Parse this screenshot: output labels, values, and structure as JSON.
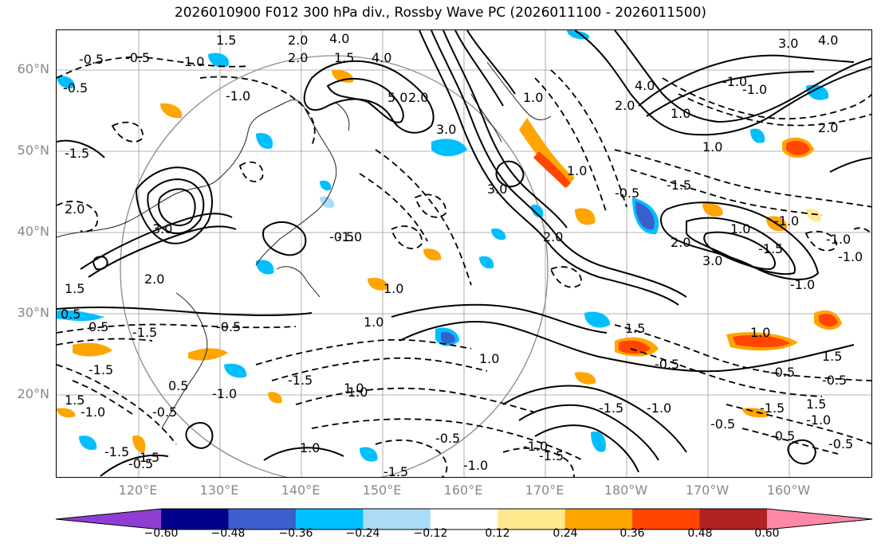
{
  "title": "2026010900 F012 300 hPa div., Rossby Wave PC (2026011100 - 2026011500)",
  "latitude_labels": [
    "60°N",
    "50°N",
    "40°N",
    "30°N",
    "20°N"
  ],
  "longitude_labels": [
    "120°E",
    "130°E",
    "140°E",
    "150°E",
    "160°E",
    "170°E",
    "180°W",
    "170°W",
    "160°W"
  ],
  "colorbar": {
    "colors": [
      "#8e3fd1",
      "#00008b",
      "#3a5fcd",
      "#00bfff",
      "#abdcf7",
      "#ffffff",
      "#ffe98f",
      "#ffa500",
      "#ff4500",
      "#b22222",
      "#ff88a8"
    ],
    "tick_labels": [
      "−0.60",
      "−0.48",
      "−0.36",
      "−0.24",
      "−0.12",
      "0.12",
      "0.24",
      "0.36",
      "0.48",
      "0.60"
    ]
  },
  "contour_labels": [
    "-0.5",
    "1.5",
    "2.0",
    "4.0",
    "-0.5",
    "1.0",
    "-0.5",
    "4.0",
    "2.0",
    "3.0",
    "4.0",
    "1.5",
    "-1.0",
    "5.0",
    "2.0",
    "4.0",
    "2.0",
    "1.0",
    "-1.0",
    "-1.0",
    "2.0",
    "-1.5",
    "3.0",
    "1.0",
    "1.0",
    "-0.5",
    "2.0",
    "3.0",
    "2.0",
    "-0.5",
    "1.0",
    "-1.5",
    "2.0",
    "3.0",
    "-1.0",
    "-1.5",
    "-1.0",
    "1.0",
    "3.0",
    "-1.0",
    "-1.0",
    "-1.0",
    "0.5",
    "1.5",
    "-0.5",
    "1.0",
    "-1.5",
    "1.0",
    "1.0",
    "-1.5",
    "2.0",
    "1.0",
    "-0.5",
    "-1.5",
    "1.5",
    "-0.5",
    "-1.0",
    "-0.5",
    "-1.5",
    "1.5",
    "0.5",
    "1.0",
    "-0.5",
    "1.5",
    "0.5",
    "-1.0",
    "-1.5",
    "1.5",
    "-1.5",
    "-0.5",
    "-1.0",
    "-0.5",
    "-1.0",
    "-1.0",
    "-0.5",
    "-1.5",
    "-0.5",
    "-1.5",
    "-0.5",
    "-1.5",
    "1.0",
    "-1.0",
    "1.0"
  ]
}
